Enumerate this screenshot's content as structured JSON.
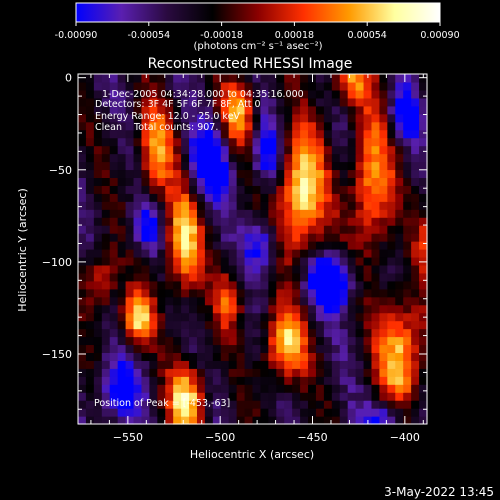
{
  "chart_data": {
    "type": "heatmap",
    "title": "Reconstructed RHESSI Image",
    "xlabel": "Heliocentric X (arcsec)",
    "ylabel": "Heliocentric Y (arcsec)",
    "xlim": [
      -577,
      -388
    ],
    "ylim": [
      -188,
      2
    ],
    "xticks": [
      -550,
      -500,
      -450,
      -400
    ],
    "yticks": [
      0,
      -50,
      -100,
      -150
    ],
    "colorbar": {
      "range": [
        -0.0009,
        0.0009
      ],
      "ticks": [
        "-0.00090",
        "-0.00054",
        "-0.00018",
        "0.00018",
        "0.00054",
        "0.00090"
      ],
      "unit_label": "(photons cm⁻² s⁻¹ asec⁻²)",
      "colors": [
        "#0000ff",
        "#5a1fb0",
        "#2a0a40",
        "#000000",
        "#8b0000",
        "#ff3000",
        "#ff9a00",
        "#ffffa0",
        "#ffffff"
      ]
    },
    "annotations": [
      "1-Dec-2005 04:34:28.000 to 04:35:16.000",
      "Detectors: 3F 4F 5F 6F 7F 8F, Att 0",
      "Energy Range: 12.0 - 25.0 keV",
      "Clean    Total counts: 907."
    ],
    "peak_text": "Position of Peak = [-453,-63]",
    "peak": [
      -453,
      -63
    ],
    "grid": 44,
    "sources": [
      {
        "x": -456,
        "y": -63,
        "sx": 9,
        "sy": 24,
        "a": 1.0
      },
      {
        "x": -520,
        "y": -90,
        "sx": 7,
        "sy": 20,
        "a": 0.85
      },
      {
        "x": -518,
        "y": -175,
        "sx": 7,
        "sy": 14,
        "a": 0.9
      },
      {
        "x": -465,
        "y": -145,
        "sx": 8,
        "sy": 14,
        "a": 0.85
      },
      {
        "x": -545,
        "y": -130,
        "sx": 6,
        "sy": 10,
        "a": 0.85
      },
      {
        "x": -402,
        "y": -150,
        "sx": 9,
        "sy": 22,
        "a": 0.85
      },
      {
        "x": -418,
        "y": -58,
        "sx": 8,
        "sy": 28,
        "a": 0.75
      },
      {
        "x": -535,
        "y": -40,
        "sx": 7,
        "sy": 18,
        "a": 0.7
      },
      {
        "x": -490,
        "y": -20,
        "sx": 7,
        "sy": 14,
        "a": 0.7
      },
      {
        "x": -565,
        "y": -110,
        "sx": 6,
        "sy": 12,
        "a": 0.6
      },
      {
        "x": -430,
        "y": 0,
        "sx": 8,
        "sy": 10,
        "a": 0.6
      },
      {
        "x": -495,
        "y": -120,
        "sx": 6,
        "sy": 12,
        "a": 0.5
      },
      {
        "x": -385,
        "y": -90,
        "sx": 6,
        "sy": 14,
        "a": 0.5
      },
      {
        "x": -478,
        "y": -90,
        "sx": 6,
        "sy": 10,
        "a": -0.6
      },
      {
        "x": -440,
        "y": -110,
        "sx": 9,
        "sy": 10,
        "a": -0.9
      },
      {
        "x": -505,
        "y": -45,
        "sx": 8,
        "sy": 14,
        "a": -0.7
      },
      {
        "x": -555,
        "y": -170,
        "sx": 8,
        "sy": 12,
        "a": -0.6
      },
      {
        "x": -410,
        "y": -185,
        "sx": 8,
        "sy": 8,
        "a": -0.6
      },
      {
        "x": -475,
        "y": -40,
        "sx": 6,
        "sy": 12,
        "a": -0.6
      },
      {
        "x": -540,
        "y": -80,
        "sx": 6,
        "sy": 10,
        "a": -0.5
      },
      {
        "x": -400,
        "y": -20,
        "sx": 6,
        "sy": 10,
        "a": -0.6
      }
    ]
  },
  "footer": {
    "timestamp": "3-May-2022 13:45"
  }
}
